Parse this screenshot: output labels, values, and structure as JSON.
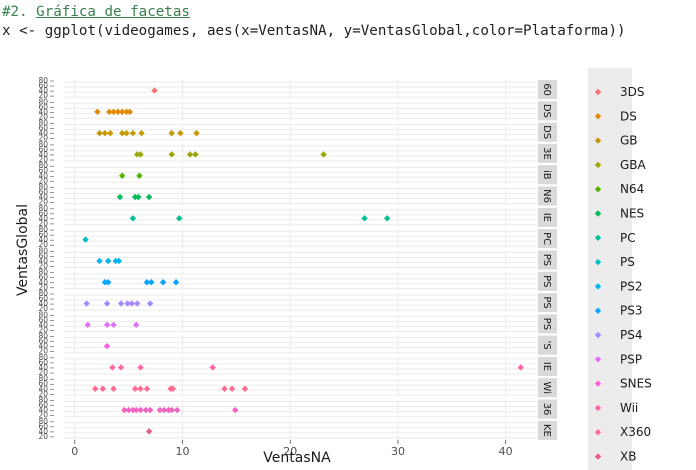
{
  "editor": {
    "comment_prefix": "#2. ",
    "comment_link": "Gráfica de facetas",
    "code": "x <- ggplot(videogames, aes(x=VentasNA, y=VentasGlobal,color=Plataforma))"
  },
  "chart_data": {
    "type": "scatter",
    "title": "",
    "xlabel": "VentasNA",
    "ylabel": "VentasGlobal",
    "xlim": [
      -1,
      43
    ],
    "x_ticks": [
      0,
      10,
      20,
      30,
      40
    ],
    "y_tick_labels": [
      "20",
      "40",
      "60",
      "80"
    ],
    "facet_by": "Plataforma",
    "legend_title": "",
    "legend_position": "right",
    "grid": true,
    "facets": [
      {
        "strip": "60",
        "legend": "3DS",
        "color": "#F8766D",
        "x": [
          7.4
        ]
      },
      {
        "strip": "DS",
        "legend": "DS",
        "color": "#E38900",
        "x": [
          2.1,
          3.2,
          3.6,
          4.0,
          4.4,
          4.8,
          5.1
        ]
      },
      {
        "strip": "DS",
        "legend": "GB",
        "color": "#C49A00",
        "x": [
          2.3,
          2.8,
          3.3,
          4.4,
          4.8,
          5.4,
          6.2,
          9.0,
          9.8,
          11.3
        ]
      },
      {
        "strip": "3E",
        "legend": "GBA",
        "color": "#99A800",
        "x": [
          5.8,
          6.1,
          9.0,
          10.7,
          11.2,
          23.1
        ]
      },
      {
        "strip": "iB",
        "legend": "N64",
        "color": "#53B400",
        "x": [
          4.4,
          6.0
        ]
      },
      {
        "strip": "N6",
        "legend": "NES",
        "color": "#00BC56",
        "x": [
          4.2,
          5.6,
          5.9,
          6.9
        ]
      },
      {
        "strip": "IE",
        "legend": "PC",
        "color": "#00C094",
        "x": [
          5.4,
          9.7,
          26.9,
          29.0
        ]
      },
      {
        "strip": "PC",
        "legend": "PS",
        "color": "#00BFC4",
        "x": [
          1.0
        ]
      },
      {
        "strip": "PS",
        "legend": "PS2",
        "color": "#00B6EB",
        "x": [
          2.3,
          3.1,
          3.8,
          4.1
        ]
      },
      {
        "strip": "PS",
        "legend": "PS3",
        "color": "#06A4FF",
        "x": [
          2.8,
          3.1,
          6.7,
          7.1,
          8.2,
          9.4
        ]
      },
      {
        "strip": "PS",
        "legend": "PS4",
        "color": "#A58AFF",
        "x": [
          1.1,
          3.0,
          4.3,
          4.9,
          5.3,
          5.8,
          7.0
        ]
      },
      {
        "strip": "PS",
        "legend": "PSP",
        "color": "#DF70F8",
        "x": [
          1.2,
          3.0,
          3.6,
          5.7
        ]
      },
      {
        "strip": "'S",
        "legend": "SNES",
        "color": "#FB61D7",
        "x": [
          3.0
        ]
      },
      {
        "strip": "IE",
        "legend": "Wii",
        "color": "#FF66A8",
        "x": [
          3.5,
          4.3,
          6.1,
          12.8,
          41.4
        ]
      },
      {
        "strip": "Wi",
        "legend": "X360",
        "color": "#FF6C91",
        "x": [
          1.9,
          2.6,
          3.6,
          5.6,
          6.1,
          6.7,
          8.9,
          9.1,
          13.9,
          14.6,
          15.8
        ]
      },
      {
        "strip": "36",
        "legend": "",
        "color": "#F063C2",
        "x": [
          4.6,
          5.0,
          5.4,
          5.7,
          6.1,
          6.6,
          7.0,
          7.9,
          8.3,
          8.7,
          9.0,
          9.5,
          14.9
        ]
      },
      {
        "strip": "KE",
        "legend": "XB",
        "color": "#EB5A8C",
        "x": [
          6.9
        ]
      }
    ]
  }
}
